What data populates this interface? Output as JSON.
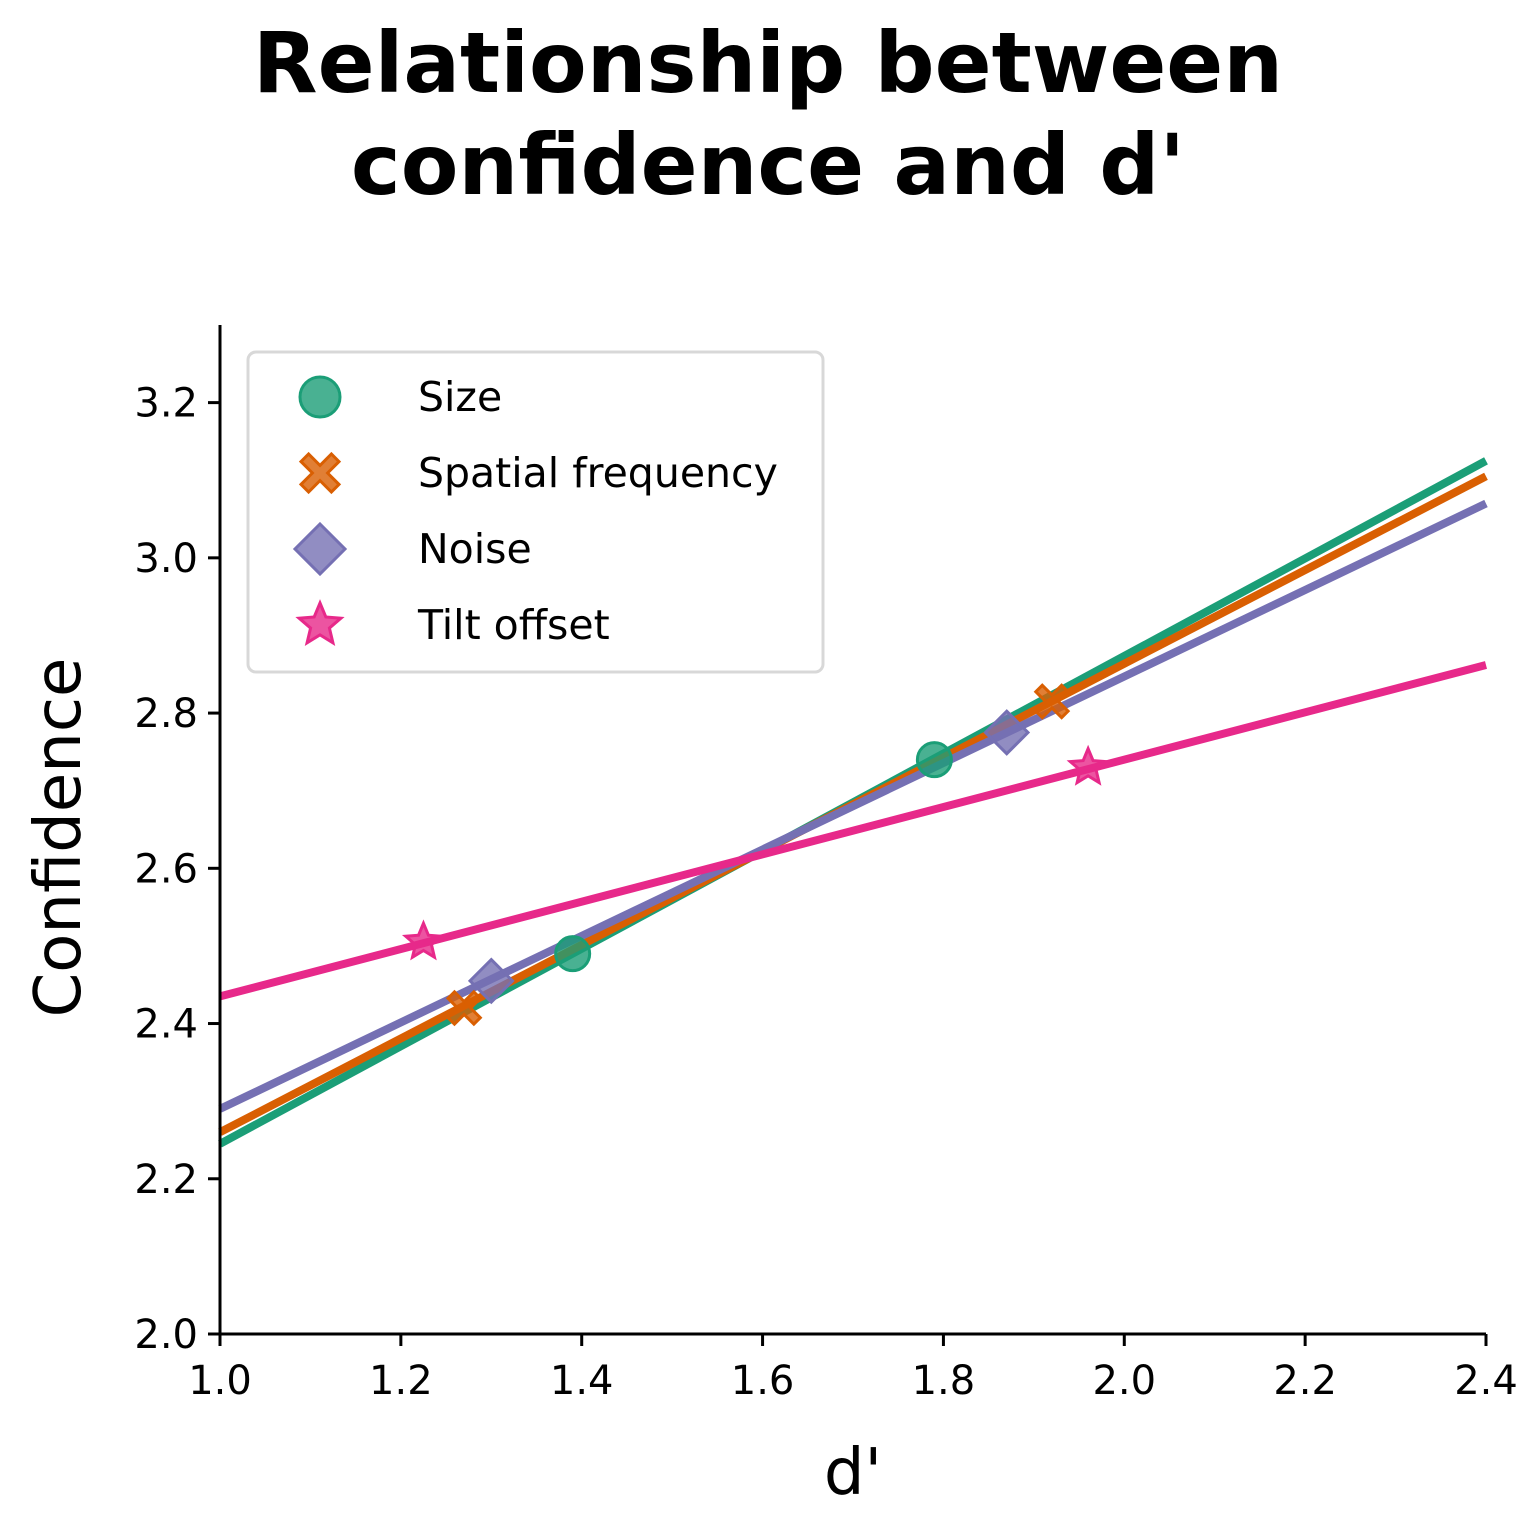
{
  "title_lines": [
    "Relationship between",
    "confidence and d'"
  ],
  "chart_data": {
    "type": "scatter",
    "title": "Relationship between confidence and d'",
    "xlabel": "d'",
    "ylabel": "Confidence",
    "xlim": [
      1.0,
      2.4
    ],
    "ylim": [
      2.0,
      3.3
    ],
    "xticks": [
      "1.0",
      "1.2",
      "1.4",
      "1.6",
      "1.8",
      "2.0",
      "2.2",
      "2.4"
    ],
    "yticks": [
      "2.0",
      "2.2",
      "2.4",
      "2.6",
      "2.8",
      "3.0",
      "3.2"
    ],
    "grid": false,
    "legend": "top-left",
    "series": [
      {
        "name": "Size",
        "marker": "circle",
        "color": "#1b9e77",
        "points": [
          [
            1.39,
            2.49
          ],
          [
            1.79,
            2.74
          ]
        ],
        "fit": {
          "x": [
            1.0,
            2.4
          ],
          "y": [
            2.245,
            3.125
          ]
        }
      },
      {
        "name": "Spatial frequency",
        "marker": "x",
        "color": "#d95f02",
        "points": [
          [
            1.27,
            2.42
          ],
          [
            1.92,
            2.815
          ]
        ],
        "fit": {
          "x": [
            1.0,
            2.4
          ],
          "y": [
            2.26,
            3.105
          ]
        }
      },
      {
        "name": "Noise",
        "marker": "diamond",
        "color": "#7570b3",
        "points": [
          [
            1.3,
            2.455
          ],
          [
            1.87,
            2.775
          ]
        ],
        "fit": {
          "x": [
            1.0,
            2.4
          ],
          "y": [
            2.29,
            3.07
          ]
        }
      },
      {
        "name": "Tilt offset",
        "marker": "star",
        "color": "#e7298a",
        "points": [
          [
            1.225,
            2.505
          ],
          [
            1.96,
            2.73
          ]
        ],
        "fit": {
          "x": [
            1.0,
            2.4
          ],
          "y": [
            2.435,
            2.862
          ]
        }
      }
    ]
  }
}
